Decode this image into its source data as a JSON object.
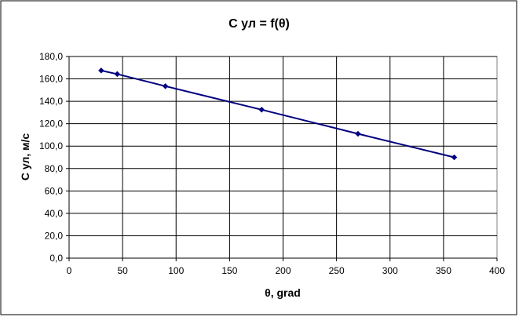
{
  "chart_data": {
    "type": "line",
    "title": "С ул = f(θ)",
    "xlabel": "θ, grad",
    "ylabel": "С ул, м/с",
    "xlim": [
      0,
      400
    ],
    "ylim": [
      0,
      180
    ],
    "x_ticks": [
      "0",
      "50",
      "100",
      "150",
      "200",
      "250",
      "300",
      "350",
      "400"
    ],
    "y_ticks": [
      "0,0",
      "20,0",
      "40,0",
      "60,0",
      "80,0",
      "100,0",
      "120,0",
      "140,0",
      "160,0",
      "180,0"
    ],
    "grid": true,
    "legend": "none",
    "series": [
      {
        "color": "#000080",
        "marker": "diamond",
        "x": [
          30,
          45,
          90,
          180,
          270,
          360
        ],
        "y": [
          167.5,
          164.3,
          153.5,
          132.5,
          111.0,
          90.0
        ]
      }
    ]
  }
}
